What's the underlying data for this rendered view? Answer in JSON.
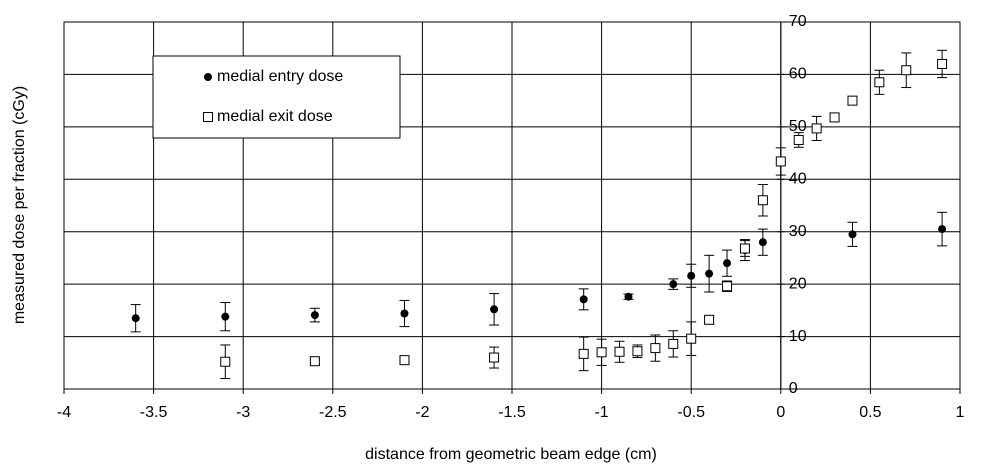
{
  "chart_data": {
    "type": "scatter",
    "xlabel": "distance from geometric beam edge (cm)",
    "ylabel": "measured dose per fraction (cGy)",
    "xlim": [
      -4,
      1
    ],
    "xticks": [
      -4,
      -3.5,
      -3,
      -2.5,
      -2,
      -1.5,
      -1,
      -0.5,
      0,
      0.5,
      1
    ],
    "ylim": [
      0,
      70
    ],
    "yticks": [
      0,
      10,
      20,
      30,
      40,
      50,
      60,
      70
    ],
    "grid": true,
    "legend": "upper left",
    "series": [
      {
        "name": "medial entry dose",
        "color": "#000000",
        "marker": "filled-circle",
        "x": [
          -3.6,
          -3.1,
          -2.6,
          -2.1,
          -1.6,
          -1.1,
          -0.85,
          -0.6,
          -0.5,
          -0.4,
          -0.3,
          -0.2,
          -0.1,
          0.4,
          0.9
        ],
        "values": [
          13.5,
          13.8,
          14.1,
          14.4,
          15.2,
          17.1,
          17.6,
          20,
          21.6,
          22,
          24,
          26.5,
          28,
          29.5,
          30.5
        ],
        "errors": [
          2.6,
          2.7,
          1.3,
          2.5,
          3,
          2,
          0.5,
          1,
          2.2,
          3.5,
          2.5,
          2,
          2.5,
          2.3,
          3.2
        ]
      },
      {
        "name": "medial exit dose",
        "color": "#000000",
        "marker": "open-square",
        "x": [
          -3.1,
          -2.6,
          -2.1,
          -1.6,
          -1.1,
          -1,
          -0.9,
          -0.8,
          -0.7,
          -0.6,
          -0.5,
          -0.4,
          -0.3,
          -0.2,
          -0.1,
          0,
          0.1,
          0.2,
          0.3,
          0.4,
          0.55,
          0.7,
          0.9
        ],
        "values": [
          5.2,
          5.3,
          5.5,
          6,
          6.7,
          7,
          7.1,
          7.2,
          7.8,
          8.6,
          9.6,
          13.2,
          19.6,
          26.8,
          36,
          43.4,
          47.5,
          49.7,
          51.8,
          55,
          58.5,
          60.8,
          62
        ],
        "errors": [
          3.2,
          0.6,
          0.8,
          2,
          3.2,
          2.5,
          2,
          1.2,
          2.5,
          2.5,
          3.2,
          0.6,
          1,
          1.5,
          3,
          2.6,
          1.4,
          2.3,
          0.7,
          0.8,
          2.3,
          3.3,
          2.6
        ]
      }
    ]
  }
}
